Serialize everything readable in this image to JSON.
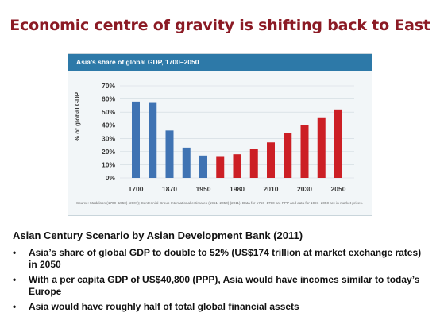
{
  "slide": {
    "title": "Economic centre of gravity is shifting back to East"
  },
  "chart_card": {
    "header_title": "Asia’s share of global GDP, 1700–2050",
    "source_note": "Source: Maddison (1700–1950) (2007); Centennial Group International estimates (1951–2050) (2011). Data for 1750–1790 are PPP and data for 1991–2050 are in market prices."
  },
  "chart_data": {
    "type": "bar",
    "title": "Asia’s share of global GDP, 1700–2050",
    "xlabel": "",
    "ylabel": "% of global GDP",
    "ylim": [
      0,
      70
    ],
    "y_ticks": [
      "0%",
      "10%",
      "20%",
      "30%",
      "40%",
      "50%",
      "60%",
      "70%"
    ],
    "grid": true,
    "x_tick_labels": [
      "1700",
      "1870",
      "1950",
      "1980",
      "2010",
      "2030",
      "2050"
    ],
    "colors": {
      "historical": "#3f73b3",
      "projection": "#cc1f25",
      "grid": "#cfd8de",
      "axis_text": "#3a3a3a"
    },
    "series": [
      {
        "values": [
          {
            "x": "1700",
            "y": 58
          },
          {
            "x": "1820",
            "y": 57
          },
          {
            "x": "1870",
            "y": 36
          },
          {
            "x": "1913",
            "y": 23
          },
          {
            "x": "1950",
            "y": 17
          }
        ],
        "color": "#3f73b3"
      },
      {
        "values": [
          {
            "x": "1970",
            "y": 16
          },
          {
            "x": "1980",
            "y": 18
          },
          {
            "x": "1990",
            "y": 22
          },
          {
            "x": "2010",
            "y": 27
          },
          {
            "x": "2020",
            "y": 34
          },
          {
            "x": "2030",
            "y": 40
          },
          {
            "x": "2040",
            "y": 46
          },
          {
            "x": "2050",
            "y": 52
          }
        ],
        "color": "#cc1f25"
      }
    ]
  },
  "scenario": {
    "heading": "Asian Century Scenario by Asian Development Bank (2011)",
    "bullet_symbol": "•",
    "bullets": [
      "Asia’s share of global GDP to double to 52% (US$174 trillion at market exchange rates) in 2050",
      "With a per capita GDP of US$40,800 (PPP), Asia would have incomes similar to today’s Europe",
      "Asia would have roughly half of total global financial assets"
    ]
  }
}
